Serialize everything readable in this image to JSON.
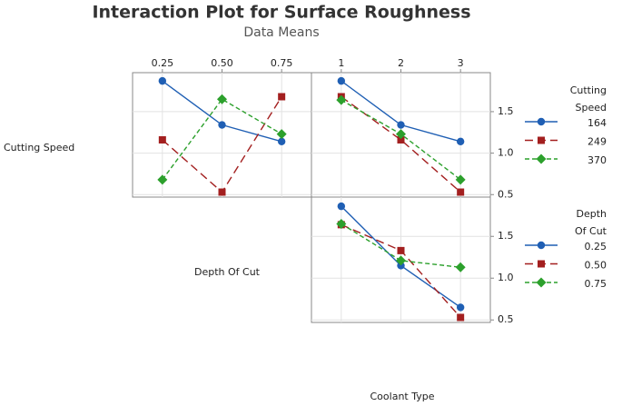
{
  "title": "Interaction Plot for Surface Roughness",
  "subtitle": "Data Means",
  "diagonal_labels": [
    "Cutting Speed",
    "Depth Of Cut",
    "Coolant Type"
  ],
  "chart_data": [
    {
      "type": "line",
      "x": [
        0.25,
        0.5,
        0.75
      ],
      "xlim": [
        0.125,
        0.875
      ],
      "xticks": [
        {
          "value": 0.25,
          "label": "0.25"
        },
        {
          "value": 0.5,
          "label": "0.50"
        },
        {
          "value": 0.75,
          "label": "0.75"
        }
      ],
      "ylim": [
        0.47,
        1.97
      ],
      "yticks": [
        0.5,
        1,
        1.5
      ],
      "grid": true,
      "series": [
        {
          "color": "#1f5fb4",
          "marker": "circle",
          "dash": "none",
          "values": [
            1.87,
            1.34,
            1.14
          ]
        },
        {
          "color": "#a31f1f",
          "marker": "square",
          "dash": "9 5",
          "values": [
            1.16,
            0.53,
            1.68
          ]
        },
        {
          "color": "#2ca02c",
          "marker": "diamond",
          "dash": "5 3",
          "values": [
            0.68,
            1.65,
            1.23
          ]
        }
      ]
    },
    {
      "type": "line",
      "x": [
        1,
        2,
        3
      ],
      "xlim": [
        0.5,
        3.5
      ],
      "xticks": [
        1,
        2,
        3
      ],
      "ylim": [
        0.47,
        1.97
      ],
      "yticks": [
        0.5,
        {
          "value": 1,
          "label": "1.0"
        },
        1.5
      ],
      "grid": true,
      "legend_title": [
        "Cutting",
        "Speed"
      ],
      "series": [
        {
          "name": "164",
          "color": "#1f5fb4",
          "marker": "circle",
          "dash": "none",
          "values": [
            1.87,
            1.34,
            1.14
          ]
        },
        {
          "name": "249",
          "color": "#a31f1f",
          "marker": "square",
          "dash": "9 5",
          "values": [
            1.68,
            1.16,
            0.53
          ]
        },
        {
          "name": "370",
          "color": "#2ca02c",
          "marker": "diamond",
          "dash": "5 3",
          "values": [
            1.64,
            1.23,
            0.68
          ]
        }
      ]
    },
    {
      "type": "line",
      "x": [
        1,
        2,
        3
      ],
      "xlim": [
        0.5,
        3.5
      ],
      "xticks": [
        1,
        2,
        3
      ],
      "ylim": [
        0.47,
        1.97
      ],
      "yticks": [
        0.5,
        {
          "value": 1,
          "label": "1.0"
        },
        1.5
      ],
      "grid": true,
      "legend_title": [
        "Depth",
        "Of Cut"
      ],
      "series": [
        {
          "name": "0.25",
          "color": "#1f5fb4",
          "marker": "circle",
          "dash": "none",
          "values": [
            1.86,
            1.15,
            0.65
          ]
        },
        {
          "name": "0.50",
          "color": "#a31f1f",
          "marker": "square",
          "dash": "9 5",
          "values": [
            1.64,
            1.33,
            0.53
          ]
        },
        {
          "name": "0.75",
          "color": "#2ca02c",
          "marker": "diamond",
          "dash": "5 3",
          "values": [
            1.65,
            1.21,
            1.13
          ]
        }
      ]
    }
  ]
}
